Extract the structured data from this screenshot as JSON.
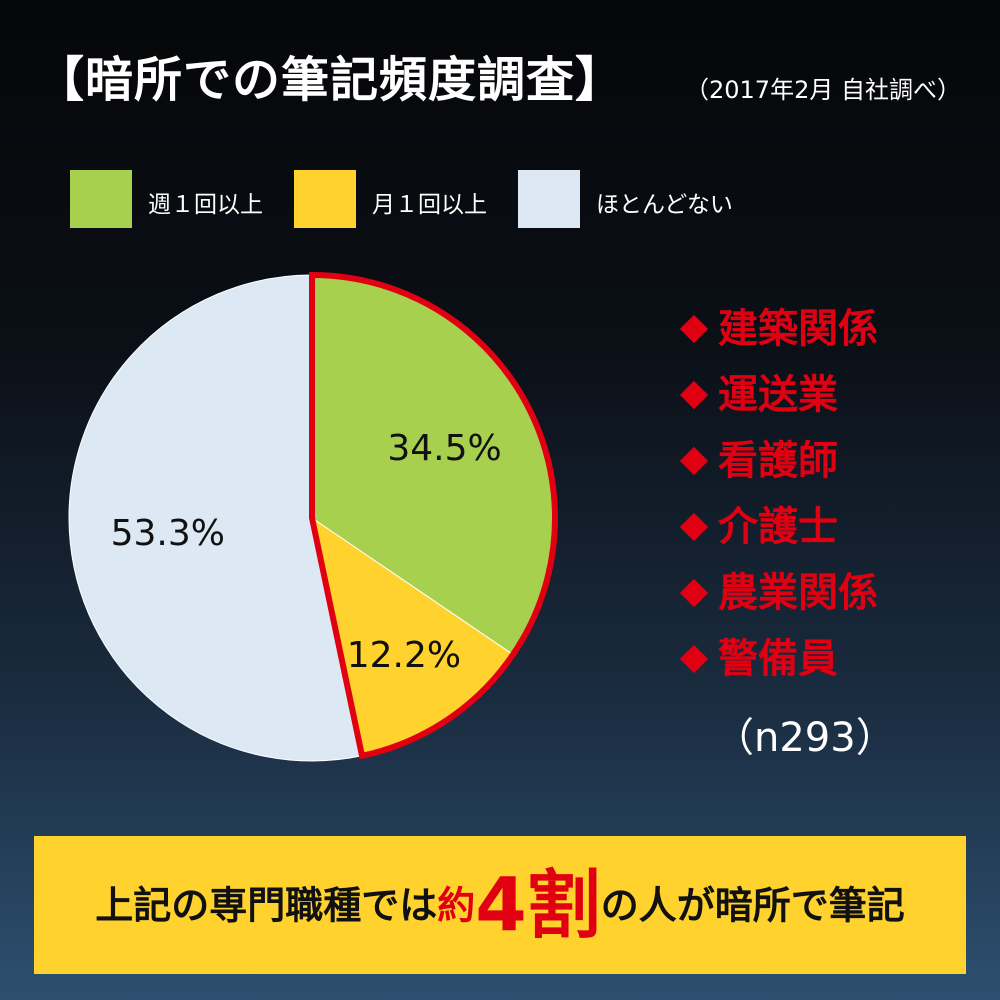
{
  "header": {
    "title": "【暗所での筆記頻度調査】",
    "subtitle": "（2017年2月 自社調べ）"
  },
  "colors": {
    "weekly": "#a7d04f",
    "monthly": "#ffd22e",
    "rarely": "#dce8f4",
    "highlight": "#e00012"
  },
  "sectors": {
    "items": [
      "建築関係",
      "運送業",
      "看護師",
      "介護士",
      "農業関係",
      "警備員"
    ],
    "sample": "（n293）"
  },
  "banner": {
    "part1": "上記の専門職種では",
    "part2": "約",
    "part3": "4割",
    "part4": "の人が暗所で筆記"
  },
  "chart_data": {
    "type": "pie",
    "title": "【暗所での筆記頻度調査】",
    "categories": [
      "週１回以上",
      "月１回以上",
      "ほとんどない"
    ],
    "values": [
      34.5,
      12.2,
      53.3
    ],
    "labels": [
      "34.5%",
      "12.2%",
      "53.3%"
    ],
    "colors": [
      "#a7d04f",
      "#ffd22e",
      "#dce8f4"
    ],
    "highlighted": [
      "週１回以上",
      "月１回以上"
    ],
    "legend_position": "top",
    "start_angle_deg": 0,
    "direction": "clockwise"
  }
}
